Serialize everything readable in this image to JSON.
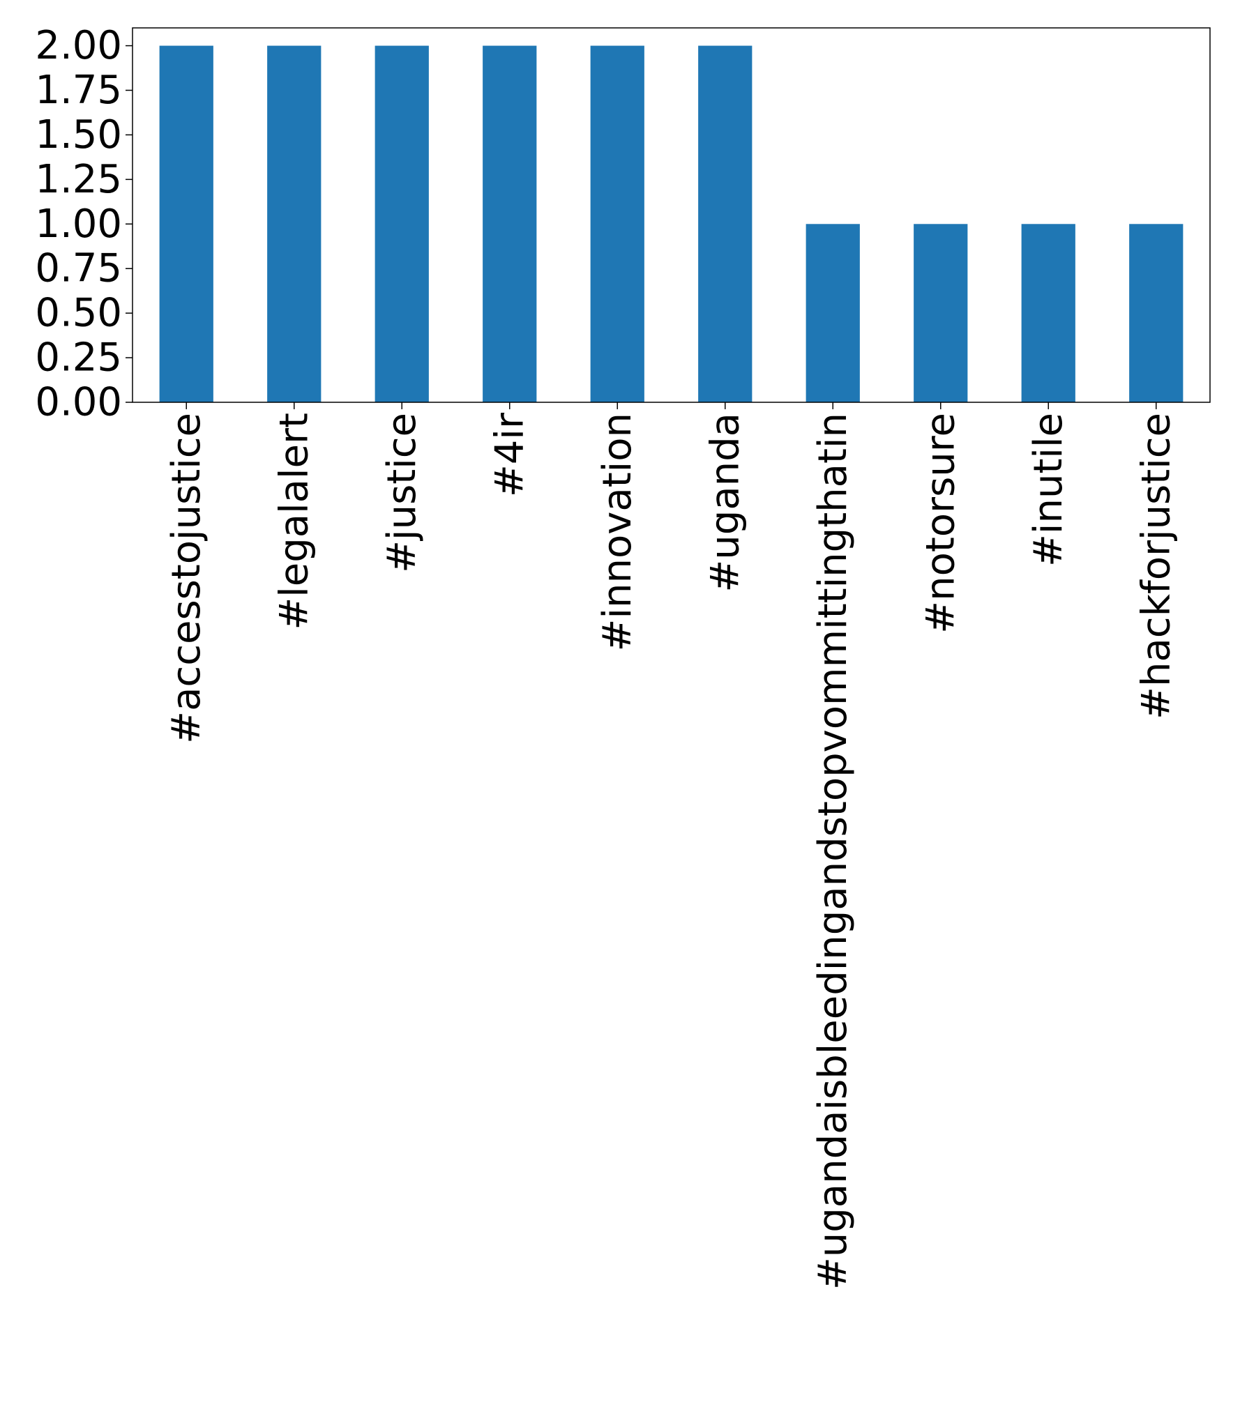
{
  "chart_data": {
    "type": "bar",
    "title": "",
    "xlabel": "",
    "ylabel": "",
    "categories": [
      "#accesstojustice",
      "#legalalert",
      "#justice",
      "#4ir",
      "#innovation",
      "#uganda",
      "#ugandaisbleedingandstopvommittingthatin",
      "#notorsure",
      "#inutile",
      "#hackforjustice"
    ],
    "values": [
      2,
      2,
      2,
      2,
      2,
      2,
      1,
      1,
      1,
      1
    ],
    "ylim": [
      0,
      2.1
    ],
    "yticks": [
      "0.00",
      "0.25",
      "0.50",
      "0.75",
      "1.00",
      "1.25",
      "1.50",
      "1.75",
      "2.00"
    ],
    "grid": false,
    "legend": "none",
    "bar_color": "#1f77b4"
  }
}
